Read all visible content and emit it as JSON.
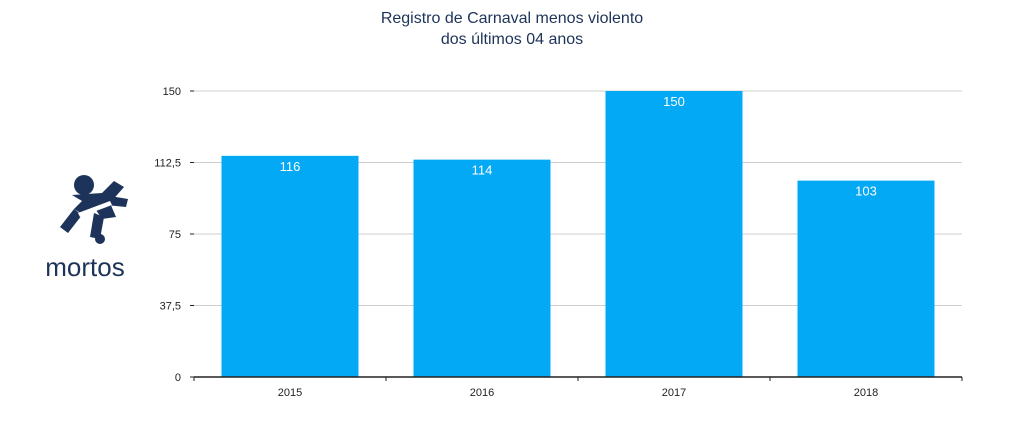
{
  "chart_data": {
    "type": "bar",
    "title": "Registro de Carnaval menos violento",
    "subtitle": "dos últimos 04 anos",
    "categories": [
      "2015",
      "2016",
      "2017",
      "2018"
    ],
    "values": [
      116,
      114,
      150,
      103
    ],
    "data_labels": [
      "116",
      "114",
      "150",
      "103"
    ],
    "yticks": [
      0,
      37.5,
      75,
      112.5,
      150
    ],
    "ytick_labels": [
      "0",
      "37,5",
      "75",
      "112,5",
      "150"
    ],
    "ylim": [
      0,
      150
    ],
    "xlabel": "",
    "ylabel": "",
    "grid": true,
    "legend": "none",
    "bar_color": "#03a9f4",
    "grid_color": "#cfcfcf",
    "axis_color": "#222222"
  },
  "side_panel": {
    "icon": "running-person-icon",
    "label": "mortos",
    "color": "#1d3359"
  }
}
